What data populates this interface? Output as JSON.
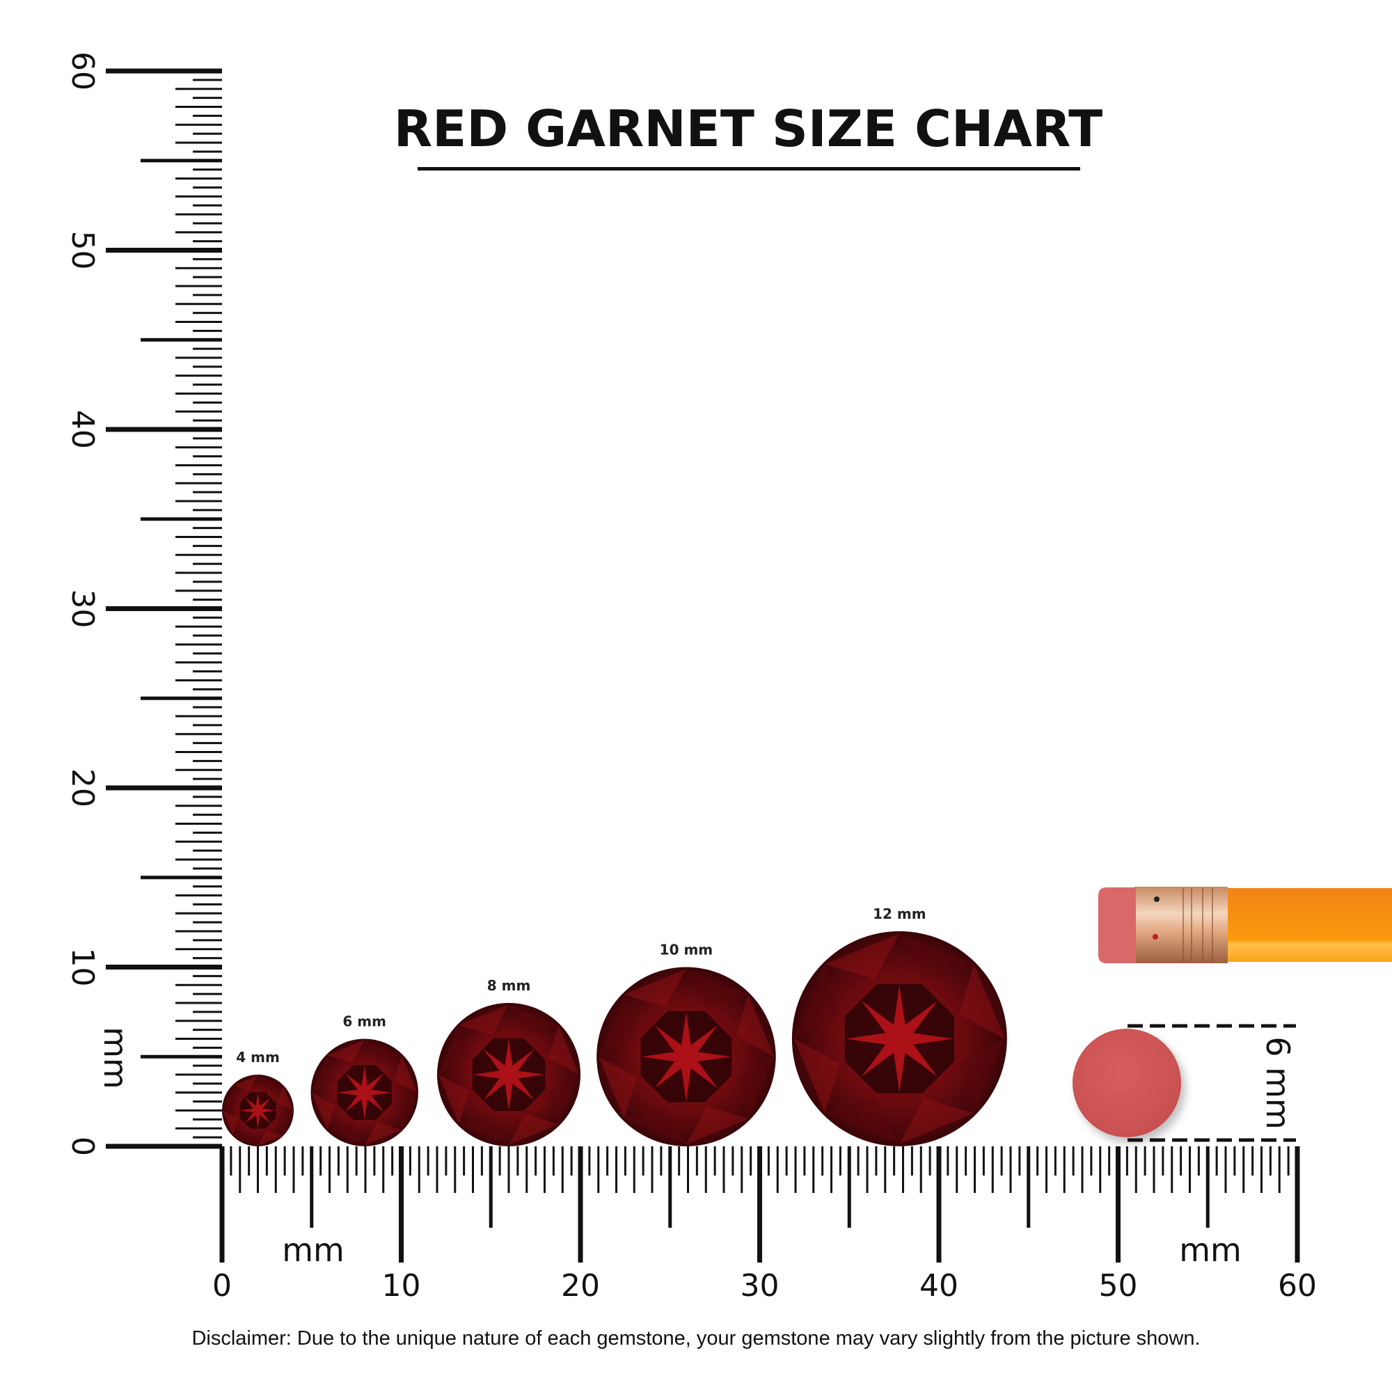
{
  "title": "RED GARNET SIZE CHART",
  "ruler": {
    "unit": "mm",
    "range_mm": [
      0,
      60
    ],
    "labels": [
      "0",
      "10",
      "20",
      "30",
      "40",
      "50",
      "60"
    ]
  },
  "gems": [
    {
      "label": "4 mm",
      "diameter_mm": 4
    },
    {
      "label": "6 mm",
      "diameter_mm": 6
    },
    {
      "label": "8 mm",
      "diameter_mm": 8
    },
    {
      "label": "10 mm",
      "diameter_mm": 10
    },
    {
      "label": "12 mm",
      "diameter_mm": 12
    }
  ],
  "reference": {
    "label": "6 mm",
    "object": "pencil-eraser",
    "diameter_mm": 6
  },
  "disclaimer": "Disclaimer: Due to the unique nature of each gemstone, your gemstone may vary slightly from the picture shown.",
  "colors": {
    "gem": "#7a0f12",
    "gem_dark": "#2a0406",
    "gem_highlight": "#c8141c",
    "eraser": "#d35a5a",
    "pencil": "#f7931e",
    "ferrule": "#d9a27a"
  }
}
